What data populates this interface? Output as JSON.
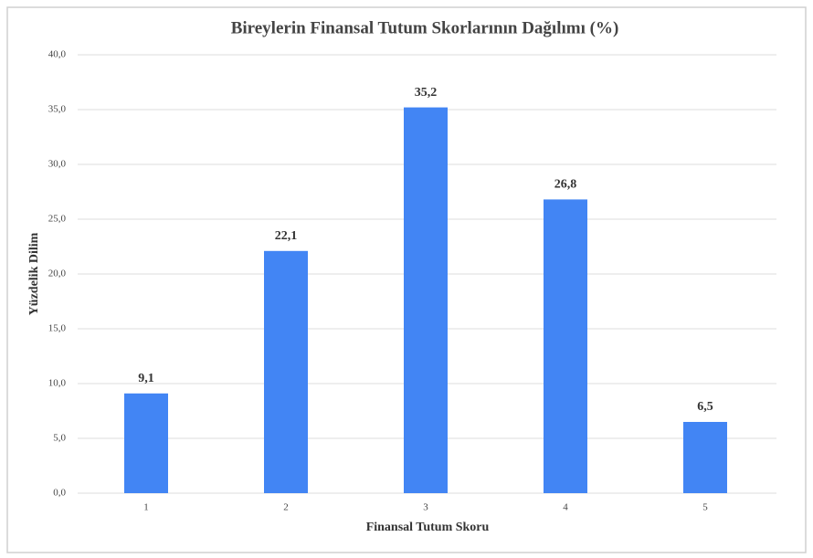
{
  "chart_data": {
    "type": "bar",
    "title": "Bireylerin Finansal Tutum Skorlarının Dağılımı (%)",
    "x_label": "Finansal Tutum Skoru",
    "y_label": "Yüzdelik Dilim",
    "categories": [
      "1",
      "2",
      "3",
      "4",
      "5"
    ],
    "values": [
      9.1,
      22.1,
      35.2,
      26.8,
      6.5
    ],
    "value_labels": [
      "9,1",
      "22,1",
      "35,2",
      "26,8",
      "6,5"
    ],
    "color": "#4285f4",
    "ylim": [
      0,
      40
    ],
    "yticks": [
      {
        "value": 0,
        "label": "0,0"
      },
      {
        "value": 5,
        "label": "5,0"
      },
      {
        "value": 10,
        "label": "10,0"
      },
      {
        "value": 15,
        "label": "15,0"
      },
      {
        "value": 20,
        "label": "20,0"
      },
      {
        "value": 25,
        "label": "25,0"
      },
      {
        "value": 30,
        "label": "30,0"
      },
      {
        "value": 35,
        "label": "35,0"
      },
      {
        "value": 40,
        "label": "40,0"
      }
    ],
    "grid": true
  }
}
